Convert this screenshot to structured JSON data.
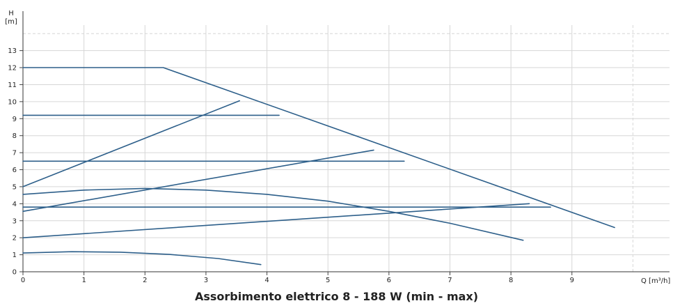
{
  "chart_data": {
    "type": "line",
    "title": "Assorbimento elettrico 8 - 188 W (min - max)",
    "xlabel": "Q [m³/h]",
    "ylabel_line1": "H",
    "ylabel_line2": "[m]",
    "xlim": [
      0,
      10.6
    ],
    "ylim": [
      0,
      14.5
    ],
    "xticks": [
      0,
      1,
      2,
      3,
      4,
      5,
      6,
      7,
      8,
      9
    ],
    "yticks": [
      0,
      1,
      2,
      3,
      4,
      5,
      6,
      7,
      8,
      9,
      10,
      11,
      12,
      13
    ],
    "grid": true,
    "line_color": "#2d5f8a",
    "grid_color": "#d6d6d6",
    "series": [
      {
        "points": [
          [
            0,
            12
          ],
          [
            2.3,
            12
          ],
          [
            9.7,
            2.6
          ]
        ]
      },
      {
        "points": [
          [
            0,
            9.2
          ],
          [
            4.2,
            9.2
          ]
        ]
      },
      {
        "points": [
          [
            0,
            6.5
          ],
          [
            6.25,
            6.5
          ]
        ]
      },
      {
        "points": [
          [
            0,
            3.8
          ],
          [
            8.65,
            3.8
          ]
        ]
      },
      {
        "points": [
          [
            0,
            5.0
          ],
          [
            3.55,
            10.05
          ]
        ]
      },
      {
        "points": [
          [
            0,
            3.55
          ],
          [
            5.75,
            7.15
          ]
        ]
      },
      {
        "points": [
          [
            0,
            2.0
          ],
          [
            8.3,
            4.0
          ]
        ]
      },
      {
        "points": [
          [
            0,
            4.55
          ],
          [
            1.0,
            4.8
          ],
          [
            2.0,
            4.9
          ],
          [
            3.0,
            4.8
          ],
          [
            4.0,
            4.55
          ],
          [
            5.0,
            4.15
          ],
          [
            6.0,
            3.55
          ],
          [
            7.0,
            2.85
          ],
          [
            8.2,
            1.85
          ]
        ]
      },
      {
        "points": [
          [
            0,
            1.1
          ],
          [
            0.8,
            1.18
          ],
          [
            1.6,
            1.15
          ],
          [
            2.4,
            1.02
          ],
          [
            3.2,
            0.78
          ],
          [
            3.9,
            0.42
          ]
        ]
      }
    ]
  }
}
